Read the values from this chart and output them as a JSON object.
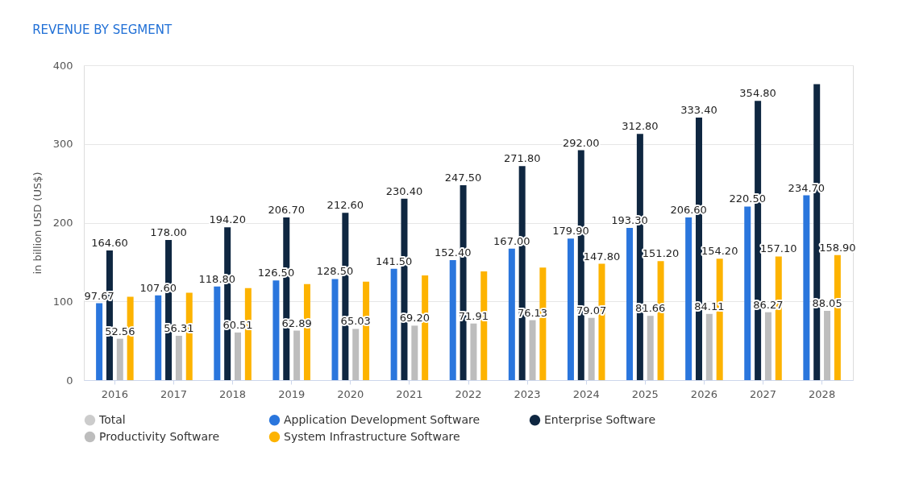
{
  "chart_data": {
    "type": "bar",
    "title": "REVENUE BY SEGMENT",
    "ylabel": "in billion USD (US$)",
    "categories": [
      "2016",
      "2017",
      "2018",
      "2019",
      "2020",
      "2021",
      "2022",
      "2023",
      "2024",
      "2025",
      "2026",
      "2027",
      "2028"
    ],
    "series": [
      {
        "name": "Total",
        "color": "#cccccc",
        "values": [
          null,
          null,
          null,
          null,
          null,
          null,
          null,
          null,
          null,
          null,
          null,
          null,
          null
        ]
      },
      {
        "name": "Application Development Software",
        "color": "#2a76dd",
        "values": [
          97.67,
          107.6,
          118.8,
          126.5,
          128.5,
          141.5,
          152.4,
          167.0,
          179.9,
          193.3,
          206.6,
          220.5,
          234.7
        ],
        "value_labels": [
          "97.67",
          "107.60",
          "118.80",
          "126.50",
          "128.50",
          "141.50",
          "152.40",
          "167.00",
          "179.90",
          "193.30",
          "206.60",
          "220.50",
          "234.70"
        ]
      },
      {
        "name": "Enterprise Software",
        "color": "#0f2741",
        "values": [
          164.6,
          178.0,
          194.2,
          206.7,
          212.6,
          230.4,
          247.5,
          271.8,
          292.0,
          312.8,
          333.4,
          354.8,
          376
        ],
        "value_labels": [
          "164.60",
          "178.00",
          "194.20",
          "206.70",
          "212.60",
          "230.40",
          "247.50",
          "271.80",
          "292.00",
          "312.80",
          "333.40",
          "354.80",
          null
        ]
      },
      {
        "name": "Productivity Software",
        "color": "#bdbdbd",
        "values": [
          52.56,
          56.31,
          60.51,
          62.89,
          65.03,
          69.2,
          71.91,
          76.13,
          79.07,
          81.66,
          84.11,
          86.27,
          88.05
        ],
        "value_labels": [
          "52.56",
          "56.31",
          "60.51",
          "62.89",
          "65.03",
          "69.20",
          "71.91",
          "76.13",
          "79.07",
          "81.66",
          "84.11",
          "86.27",
          "88.05"
        ]
      },
      {
        "name": "System Infrastructure Software",
        "color": "#fdb300",
        "values": [
          106,
          111,
          117,
          122,
          125,
          133,
          138,
          143,
          147.8,
          151.2,
          154.2,
          157.1,
          158.9
        ],
        "value_labels": [
          null,
          null,
          null,
          null,
          null,
          null,
          null,
          null,
          "147.80",
          "151.20",
          "154.20",
          "157.10",
          "158.90"
        ]
      }
    ],
    "ylim": [
      0,
      400
    ],
    "yticks": [
      0,
      100,
      200,
      300,
      400
    ],
    "grid": "y",
    "legend": "bottom"
  }
}
